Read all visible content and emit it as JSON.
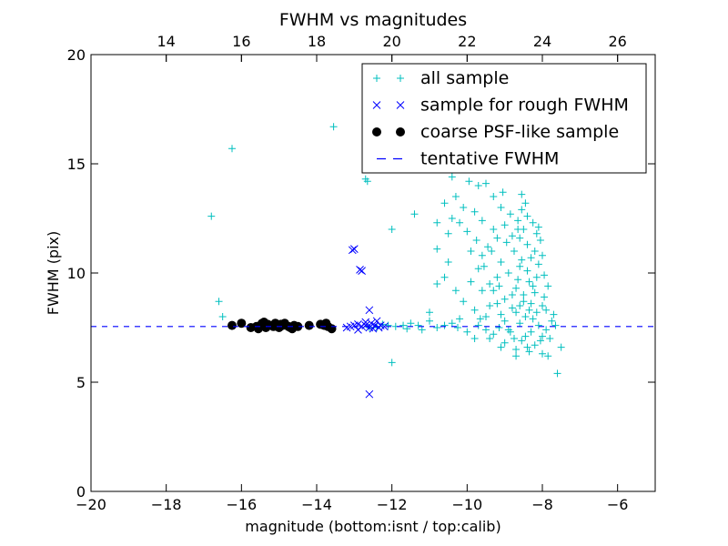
{
  "chart_data": {
    "type": "scatter",
    "title": "FWHM vs magnitudes",
    "xlabel": "magnitude (bottom:isnt / top:calib)",
    "ylabel": "FWHM (pix)",
    "xlim": [
      -20,
      -5
    ],
    "ylim": [
      0,
      20
    ],
    "x_ticks": [
      -20,
      -18,
      -16,
      -14,
      -12,
      -10,
      -8,
      -6
    ],
    "x_tick_labels": [
      "−20",
      "−18",
      "−16",
      "−14",
      "−12",
      "−10",
      "−8",
      "−6"
    ],
    "y_ticks": [
      0,
      5,
      10,
      15,
      20
    ],
    "y_tick_labels": [
      "0",
      "5",
      "10",
      "15",
      "20"
    ],
    "top_axis": {
      "offset": 32,
      "ticks": [
        14,
        16,
        18,
        20,
        22,
        24,
        26
      ],
      "tick_labels": [
        "14",
        "16",
        "18",
        "20",
        "22",
        "24",
        "26"
      ]
    },
    "grid": false,
    "legend_position": "top-right",
    "series": [
      {
        "name": "all sample",
        "marker": "plus",
        "color": "#00bfbf",
        "points": [
          [
            -16.8,
            12.6
          ],
          [
            -16.25,
            15.7
          ],
          [
            -16.6,
            8.7
          ],
          [
            -16.5,
            8.0
          ],
          [
            -13.55,
            16.7
          ],
          [
            -12.65,
            14.2
          ],
          [
            -12.7,
            14.3
          ],
          [
            -11.4,
            12.7
          ],
          [
            -12.0,
            12.0
          ],
          [
            -12.4,
            7.5
          ],
          [
            -12.1,
            7.6
          ],
          [
            -11.9,
            7.55
          ],
          [
            -11.7,
            7.6
          ],
          [
            -11.5,
            7.7
          ],
          [
            -11.2,
            7.4
          ],
          [
            -11.0,
            7.8
          ],
          [
            -10.8,
            7.5
          ],
          [
            -10.6,
            7.6
          ],
          [
            -11.0,
            8.2
          ],
          [
            -10.8,
            9.5
          ],
          [
            -10.6,
            9.8
          ],
          [
            -10.5,
            10.5
          ],
          [
            -10.8,
            11.1
          ],
          [
            -10.5,
            11.8
          ],
          [
            -10.4,
            12.5
          ],
          [
            -10.8,
            12.3
          ],
          [
            -10.4,
            14.4
          ],
          [
            -10.6,
            13.2
          ],
          [
            -10.3,
            13.5
          ],
          [
            -10.1,
            13.0
          ],
          [
            -9.95,
            14.2
          ],
          [
            -9.8,
            12.8
          ],
          [
            -9.6,
            12.4
          ],
          [
            -9.9,
            11.0
          ],
          [
            -9.7,
            10.2
          ],
          [
            -9.9,
            9.6
          ],
          [
            -9.6,
            9.2
          ],
          [
            -9.5,
            8.0
          ],
          [
            -10.2,
            7.9
          ],
          [
            -10.0,
            7.3
          ],
          [
            -9.8,
            7.0
          ],
          [
            -9.7,
            7.6
          ],
          [
            -9.5,
            7.4
          ],
          [
            -9.3,
            7.2
          ],
          [
            -9.15,
            7.5
          ],
          [
            -9.0,
            6.8
          ],
          [
            -8.85,
            7.3
          ],
          [
            -8.7,
            6.5
          ],
          [
            -8.55,
            6.9
          ],
          [
            -8.4,
            6.6
          ],
          [
            -8.2,
            6.7
          ],
          [
            -8.0,
            6.3
          ],
          [
            -7.85,
            6.2
          ],
          [
            -7.5,
            6.6
          ],
          [
            -7.6,
            5.4
          ],
          [
            -12.0,
            5.9
          ],
          [
            -9.7,
            14.0
          ],
          [
            -9.5,
            14.1
          ],
          [
            -9.3,
            13.5
          ],
          [
            -9.1,
            13.0
          ],
          [
            -9.0,
            12.2
          ],
          [
            -9.2,
            11.6
          ],
          [
            -9.35,
            11.0
          ],
          [
            -9.1,
            10.5
          ],
          [
            -8.9,
            10.0
          ],
          [
            -9.2,
            9.8
          ],
          [
            -9.3,
            9.2
          ],
          [
            -9.0,
            8.8
          ],
          [
            -8.8,
            8.4
          ],
          [
            -8.7,
            9.3
          ],
          [
            -8.6,
            10.3
          ],
          [
            -8.75,
            11.0
          ],
          [
            -8.8,
            11.7
          ],
          [
            -8.65,
            12.4
          ],
          [
            -8.55,
            12.9
          ],
          [
            -8.45,
            13.2
          ],
          [
            -8.5,
            12.0
          ],
          [
            -8.4,
            11.3
          ],
          [
            -8.3,
            10.7
          ],
          [
            -8.4,
            10.1
          ],
          [
            -8.35,
            9.6
          ],
          [
            -8.5,
            9.0
          ],
          [
            -8.6,
            8.5
          ],
          [
            -8.45,
            8.0
          ],
          [
            -8.3,
            8.6
          ],
          [
            -8.2,
            9.1
          ],
          [
            -8.15,
            9.8
          ],
          [
            -8.1,
            10.4
          ],
          [
            -8.2,
            11.0
          ],
          [
            -8.05,
            11.5
          ],
          [
            -7.9,
            8.3
          ],
          [
            -7.95,
            8.9
          ],
          [
            -7.85,
            9.4
          ],
          [
            -7.75,
            7.8
          ],
          [
            -7.65,
            7.6
          ],
          [
            -8.0,
            7.1
          ],
          [
            -8.1,
            7.6
          ],
          [
            -8.3,
            7.3
          ],
          [
            -8.6,
            7.7
          ],
          [
            -8.9,
            7.4
          ],
          [
            -9.1,
            8.1
          ],
          [
            -9.4,
            8.5
          ],
          [
            -8.7,
            8.2
          ],
          [
            -8.5,
            8.7
          ],
          [
            -8.35,
            8.3
          ],
          [
            -8.25,
            7.9
          ],
          [
            -8.15,
            8.2
          ],
          [
            -8.0,
            8.5
          ],
          [
            -7.9,
            7.4
          ],
          [
            -8.45,
            7.1
          ],
          [
            -8.75,
            7.0
          ],
          [
            -9.0,
            7.8
          ],
          [
            -9.2,
            8.6
          ],
          [
            -9.4,
            9.5
          ],
          [
            -9.55,
            10.3
          ],
          [
            -9.45,
            11.2
          ],
          [
            -9.3,
            12.0
          ],
          [
            -8.95,
            11.4
          ],
          [
            -8.85,
            12.7
          ],
          [
            -8.6,
            11.6
          ],
          [
            -8.25,
            12.3
          ],
          [
            -8.15,
            11.8
          ],
          [
            -8.4,
            12.6
          ],
          [
            -8.55,
            10.6
          ],
          [
            -8.65,
            9.7
          ],
          [
            -8.8,
            9.0
          ],
          [
            -9.15,
            9.4
          ],
          [
            -9.6,
            10.8
          ],
          [
            -9.75,
            11.5
          ],
          [
            -10.0,
            11.9
          ],
          [
            -10.2,
            12.3
          ],
          [
            -10.3,
            9.2
          ],
          [
            -10.1,
            8.7
          ],
          [
            -9.8,
            8.3
          ],
          [
            -9.65,
            7.9
          ],
          [
            -10.4,
            7.7
          ],
          [
            -10.25,
            7.5
          ],
          [
            -11.3,
            7.6
          ],
          [
            -11.6,
            7.45
          ],
          [
            -12.25,
            7.65
          ],
          [
            -12.6,
            7.5
          ],
          [
            -8.05,
            6.9
          ],
          [
            -8.35,
            6.4
          ],
          [
            -8.7,
            6.2
          ],
          [
            -9.1,
            6.6
          ],
          [
            -9.4,
            7.0
          ],
          [
            -7.8,
            7.0
          ],
          [
            -7.7,
            8.1
          ],
          [
            -7.95,
            9.9
          ],
          [
            -8.0,
            10.8
          ],
          [
            -8.1,
            12.1
          ],
          [
            -8.25,
            9.4
          ],
          [
            -8.55,
            13.6
          ],
          [
            -8.65,
            12.0
          ],
          [
            -9.05,
            13.7
          ]
        ]
      },
      {
        "name": "sample for rough FWHM",
        "marker": "x",
        "color": "#0000ff",
        "points": [
          [
            -13.05,
            11.05
          ],
          [
            -13.0,
            11.1
          ],
          [
            -12.85,
            10.15
          ],
          [
            -12.8,
            10.1
          ],
          [
            -12.6,
            4.45
          ],
          [
            -12.6,
            8.3
          ],
          [
            -13.1,
            7.55
          ],
          [
            -13.0,
            7.6
          ],
          [
            -12.9,
            7.4
          ],
          [
            -12.8,
            7.55
          ],
          [
            -12.7,
            7.6
          ],
          [
            -12.6,
            7.5
          ],
          [
            -12.55,
            7.7
          ],
          [
            -12.5,
            7.45
          ],
          [
            -12.45,
            7.6
          ],
          [
            -12.4,
            7.8
          ],
          [
            -12.35,
            7.5
          ],
          [
            -12.3,
            7.6
          ],
          [
            -12.2,
            7.55
          ],
          [
            -12.7,
            7.75
          ],
          [
            -12.9,
            7.65
          ],
          [
            -13.2,
            7.5
          ]
        ]
      },
      {
        "name": "coarse PSF-like sample",
        "marker": "dot",
        "color": "#000000",
        "points": [
          [
            -16.25,
            7.6
          ],
          [
            -16.0,
            7.7
          ],
          [
            -15.75,
            7.5
          ],
          [
            -15.6,
            7.55
          ],
          [
            -15.5,
            7.6
          ],
          [
            -15.45,
            7.7
          ],
          [
            -15.4,
            7.75
          ],
          [
            -15.35,
            7.5
          ],
          [
            -15.3,
            7.65
          ],
          [
            -15.25,
            7.6
          ],
          [
            -15.15,
            7.55
          ],
          [
            -15.1,
            7.7
          ],
          [
            -15.0,
            7.5
          ],
          [
            -14.9,
            7.6
          ],
          [
            -14.85,
            7.7
          ],
          [
            -14.75,
            7.55
          ],
          [
            -14.7,
            7.5
          ],
          [
            -14.6,
            7.6
          ],
          [
            -14.5,
            7.55
          ],
          [
            -14.2,
            7.6
          ],
          [
            -13.9,
            7.65
          ],
          [
            -13.8,
            7.6
          ],
          [
            -13.7,
            7.55
          ],
          [
            -13.6,
            7.45
          ],
          [
            -15.55,
            7.45
          ],
          [
            -14.95,
            7.65
          ],
          [
            -14.65,
            7.45
          ],
          [
            -13.75,
            7.7
          ]
        ]
      },
      {
        "name": "tentative FWHM",
        "marker": "dashed-line",
        "color": "#0000ff",
        "y": 7.55
      }
    ]
  }
}
